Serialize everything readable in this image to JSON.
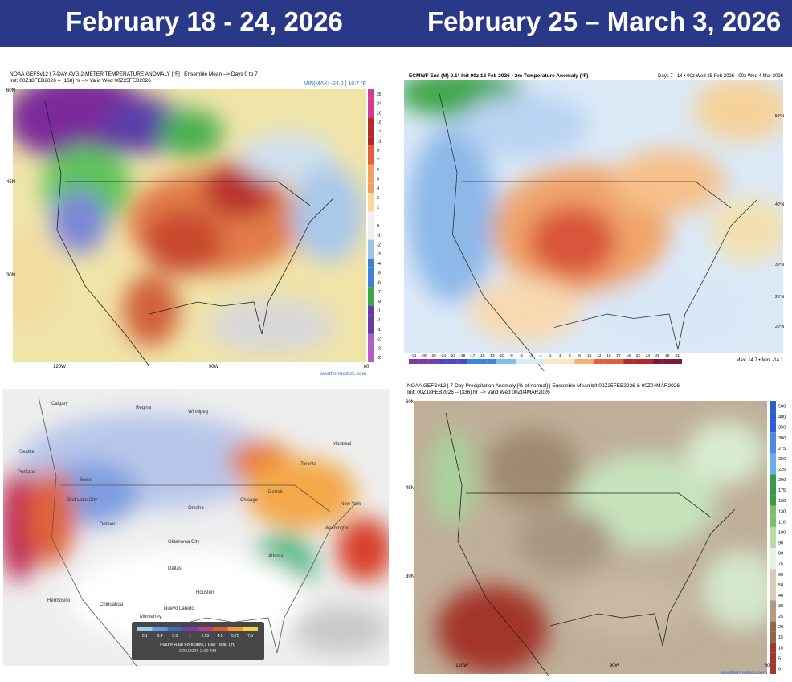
{
  "header": {
    "left_title": "February 18 - 24, 2026",
    "right_title": "February 25 – March 3, 2026"
  },
  "panels": [
    {
      "title": "NOAA GEFSv12 | 7-DAY AVG 2-METER TEMPERATURE ANOMALY [°F] | Ensemble Mean --> Days 0 to 7",
      "subtitle": "Init: 00Z18FEB2026 -- [168] hr --> Valid Wed 00Z25FEB2026",
      "minmax": "MIN|MAX: -24.0 | 10.7 °F",
      "lat_labels": [
        "60N",
        "45N",
        "30N"
      ],
      "lon_labels": [
        "120W",
        "90W",
        "60"
      ],
      "colorbar_labels": [
        "28",
        "24",
        "20",
        "16",
        "13",
        "11",
        "9",
        "7",
        "6",
        "5",
        "4",
        "3",
        "2",
        "1",
        "0",
        "-1",
        "-2",
        "-3",
        "-4",
        "-5",
        "-6",
        "-7",
        "-9",
        "-11",
        "-13",
        "-16",
        "-20",
        "-24",
        "-28"
      ],
      "credit": "weathermodels.com"
    },
    {
      "title": "ECMWF Ens (M) 0.1° Init 00z 18 Feb 2026 • 2m Temperature Anomaly (°F)",
      "right_title": "Days 7 - 14 • 00z Wed 25 Feb 2026 - 00z Wed 4 Mar 2026",
      "lat_labels": [
        "50°N",
        "40°N",
        "30°N",
        "25°N",
        "20°N"
      ],
      "colorbar_labels": [
        "-31",
        "-29",
        "-26",
        "-24",
        "-22",
        "-19",
        "-17",
        "-15",
        "-13",
        "-10",
        "-8",
        "-6",
        "-3",
        "-1",
        "1",
        "3",
        "5",
        "8",
        "10",
        "12",
        "15",
        "17",
        "19",
        "22",
        "24",
        "26",
        "29",
        "31"
      ],
      "minmax": "Max: 14.7 • Min: -14.1"
    },
    {
      "cities": [
        "Calgary",
        "Regina",
        "Winnipeg",
        "Seattle",
        "Portland",
        "Boise",
        "Salt Lake City",
        "Denver",
        "Omaha",
        "Chicago",
        "Detroit",
        "Toronto",
        "Montreal",
        "New York",
        "Washington",
        "Oklahoma City",
        "Dallas",
        "Houston",
        "Atlanta",
        "Hermosillo",
        "Chihuahua",
        "Monterrey",
        "Nuevo Laredo"
      ],
      "legend_labels": [
        "0.1",
        "0.4",
        "0.5",
        "1",
        "2.25",
        "4.5",
        "5.75",
        "7.5"
      ],
      "legend_title": "Future Rain Forecast (7 Day Total) (in)",
      "legend_time": "2/25/2026 2:00 AM"
    },
    {
      "title": "NOAA GEFSv12 | 7-Day Precipitation Anomaly [% of normal] | Ensemble Mean b/t 00Z25FEB2026 & 00Z04MAR2026",
      "subtitle": "Init: 00Z18FEB2026 -- [336] hr --> Valid Wed 00Z04MAR2026",
      "lat_labels": [
        "60N",
        "45N",
        "30N"
      ],
      "lon_labels": [
        "120W",
        "90W",
        "60"
      ],
      "colorbar_labels": [
        "500",
        "400",
        "350",
        "300",
        "275",
        "250",
        "225",
        "200",
        "175",
        "150",
        "130",
        "110",
        "100",
        "90",
        "80",
        "75",
        "60",
        "50",
        "40",
        "30",
        "25",
        "20",
        "15",
        "10",
        "5",
        "0"
      ],
      "credit": "weathermodels.com"
    }
  ]
}
